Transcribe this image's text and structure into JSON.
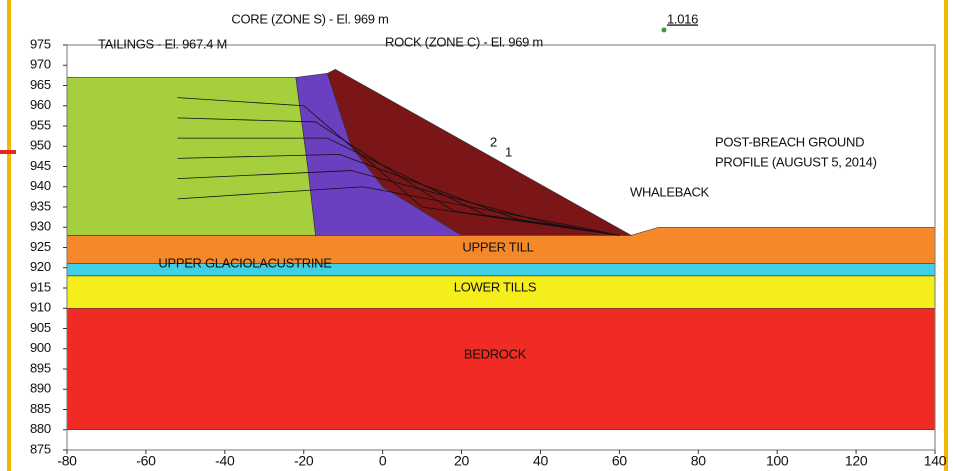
{
  "chart_data": {
    "type": "section",
    "xlim": [
      -80,
      140
    ],
    "ylim": [
      875,
      975
    ],
    "xticks": [
      -80,
      -60,
      -40,
      -20,
      0,
      20,
      40,
      60,
      80,
      100,
      120,
      140
    ],
    "yticks": [
      875,
      880,
      885,
      890,
      895,
      900,
      905,
      910,
      915,
      920,
      925,
      930,
      935,
      940,
      945,
      950,
      955,
      960,
      965,
      970,
      975
    ],
    "layers": [
      {
        "name": "BEDROCK",
        "color": "#ef2b24",
        "x": [
          -80,
          140,
          140,
          -80
        ],
        "y": [
          910,
          910,
          880,
          880
        ]
      },
      {
        "name": "LOWER TILLS",
        "color": "#f5ee1a",
        "x": [
          -80,
          140,
          140,
          -80
        ],
        "y": [
          918,
          918,
          910,
          910
        ]
      },
      {
        "name": "UPPER GLACIOLACUSTRINE",
        "color": "#3fd0e6",
        "x": [
          -80,
          140,
          140,
          -80
        ],
        "y": [
          921,
          921,
          918,
          918
        ]
      },
      {
        "name": "UPPER TILL",
        "color": "#f5892a",
        "x": [
          -80,
          63,
          70,
          140,
          140,
          -80
        ],
        "y": [
          928,
          928,
          930,
          930,
          921,
          921
        ]
      },
      {
        "color": "#a6cf3e",
        "x": [
          -80,
          -22,
          -19,
          -17,
          -80
        ],
        "y": [
          967,
          967,
          945,
          928,
          928
        ]
      },
      {
        "color": "#6a3fc0",
        "x": [
          -22,
          -14,
          -8,
          0,
          20,
          -17,
          -19
        ],
        "y": [
          967,
          968,
          950,
          940,
          928,
          928,
          945
        ]
      },
      {
        "color": "#7a1518",
        "x": [
          -14,
          -12,
          63,
          20,
          0,
          -8
        ],
        "y": [
          968,
          969,
          928,
          928,
          940,
          950
        ]
      }
    ],
    "annotations": [
      "CORE (ZONE S) - El. 969 m",
      "TAILINGS - El. 967.4 M",
      "ROCK (ZONE C) - El. 969 m",
      "1.016",
      "2",
      "1",
      "POST-BREACH GROUND",
      "PROFILE (AUGUST 5, 2014)",
      "WHALEBACK"
    ]
  }
}
